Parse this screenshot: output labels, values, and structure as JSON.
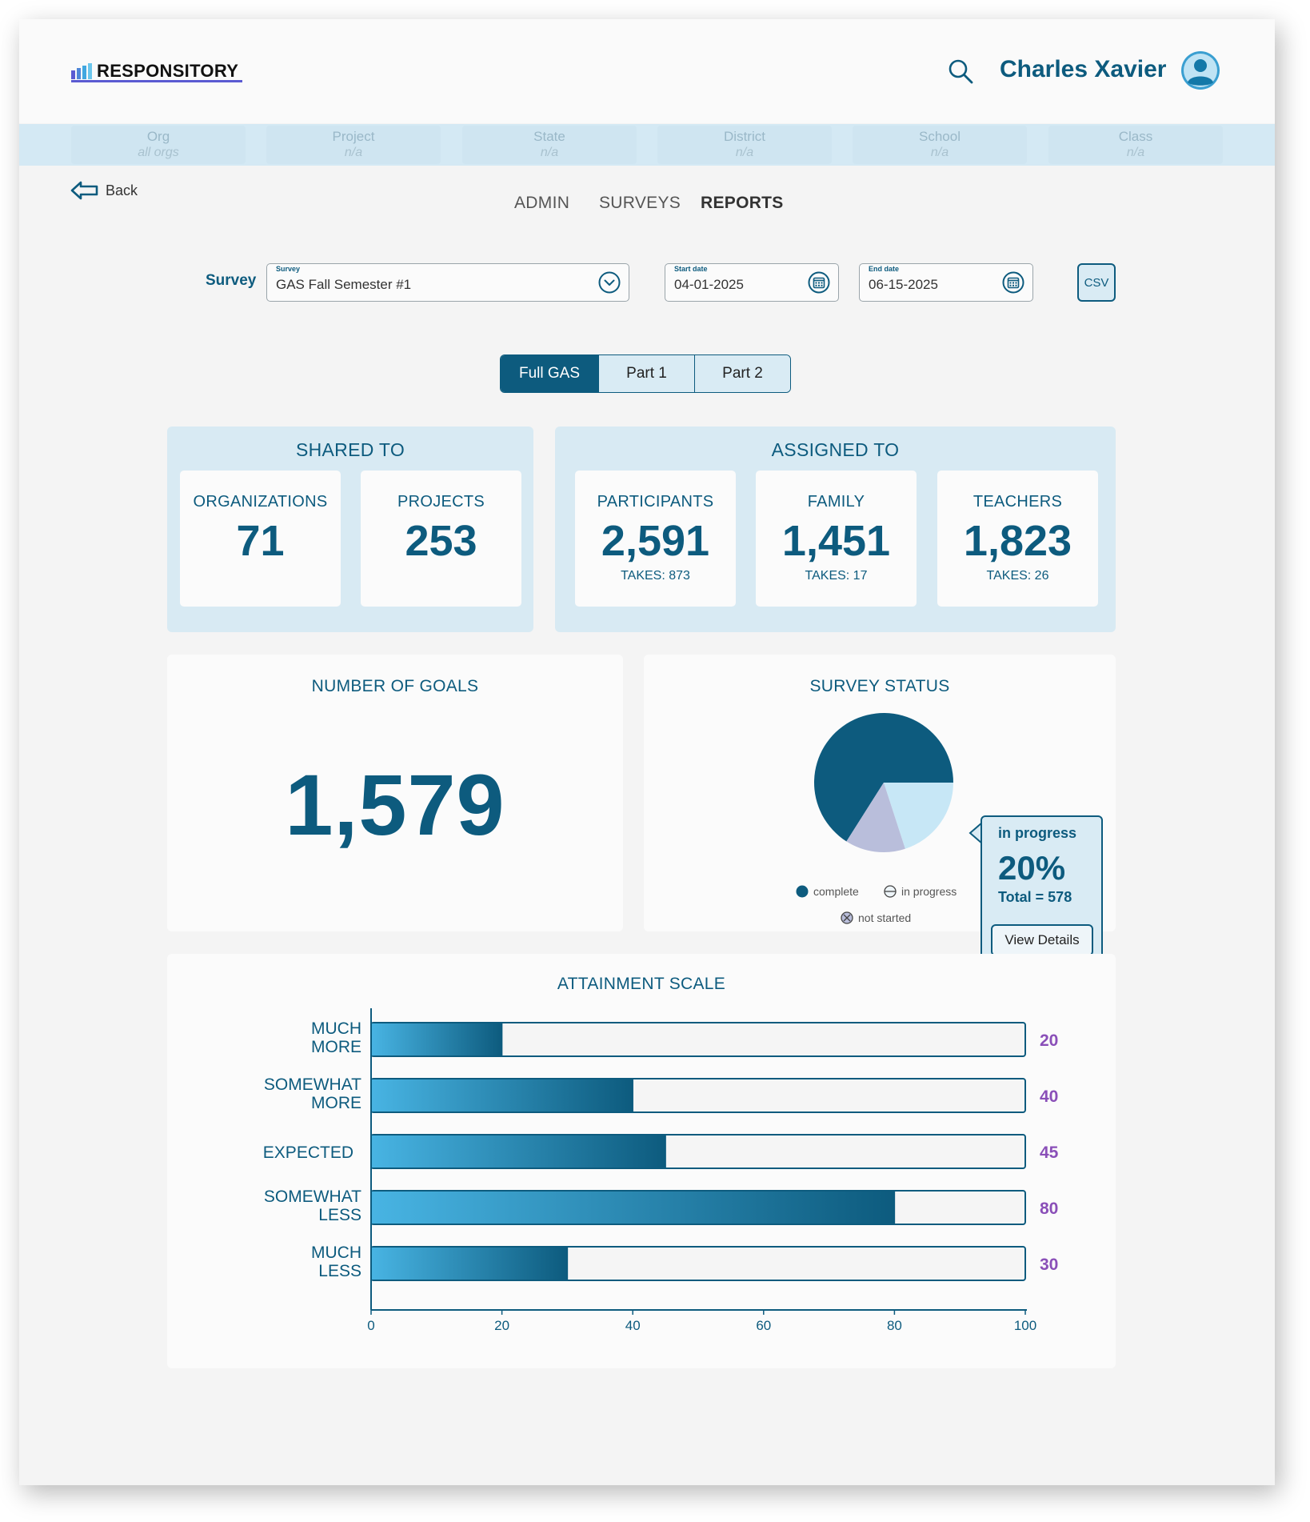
{
  "app": {
    "brand": "RESPONSITORY",
    "user_name": "Charles Xavier"
  },
  "filters": [
    {
      "label": "Org",
      "value": "all orgs"
    },
    {
      "label": "Project",
      "value": "n/a"
    },
    {
      "label": "State",
      "value": "n/a"
    },
    {
      "label": "District",
      "value": "n/a"
    },
    {
      "label": "School",
      "value": "n/a"
    },
    {
      "label": "Class",
      "value": "n/a"
    }
  ],
  "back_label": "Back",
  "nav": {
    "admin": "ADMIN",
    "surveys": "SURVEYS",
    "reports": "REPORTS",
    "active": "REPORTS"
  },
  "controls": {
    "survey_label": "Survey",
    "survey_caption": "Survey",
    "survey_value": "GAS Fall Semester #1",
    "start_caption": "Start date",
    "start_value": "04-01-2025",
    "end_caption": "End date",
    "end_value": "06-15-2025",
    "csv_label": "CSV"
  },
  "segments": {
    "full": "Full GAS",
    "part1": "Part 1",
    "part2": "Part 2",
    "active": "Full GAS"
  },
  "shared_to": {
    "title": "SHARED TO",
    "organizations_label": "ORGANIZATIONS",
    "organizations_value": "71",
    "projects_label": "PROJECTS",
    "projects_value": "253"
  },
  "assigned_to": {
    "title": "ASSIGNED TO",
    "participants_label": "PARTICIPANTS",
    "participants_value": "2,591",
    "participants_takes": "TAKES: 873",
    "family_label": "FAMILY",
    "family_value": "1,451",
    "family_takes": "TAKES: 17",
    "teachers_label": "TEACHERS",
    "teachers_value": "1,823",
    "teachers_takes": "TAKES: 26"
  },
  "goals": {
    "title": "NUMBER OF GOALS",
    "value": "1,579"
  },
  "survey_status": {
    "title": "SURVEY STATUS",
    "legend_complete": "complete",
    "legend_in_progress": "in progress",
    "legend_not_started": "not started",
    "tooltip_label": "in progress",
    "tooltip_percent": "20%",
    "tooltip_total": "Total = 578",
    "tooltip_button": "View Details"
  },
  "colors": {
    "brand": "#0d5b7e",
    "panel": "#d8eaf3",
    "complete": "#0d5b7e",
    "in_progress": "#c7e7f6",
    "not_started": "#b9bedb",
    "bar_value_text": "#8a4fb8",
    "bar_gradient_start": "#48b4e3",
    "bar_gradient_end": "#0d5b7e"
  },
  "chart_data": [
    {
      "type": "pie",
      "title": "SURVEY STATUS",
      "categories": [
        "complete",
        "in progress",
        "not started"
      ],
      "values": [
        66,
        20,
        14
      ],
      "legend": "bottom"
    },
    {
      "type": "bar",
      "orientation": "horizontal",
      "title": "ATTAINMENT SCALE",
      "categories": [
        "MUCH MORE",
        "SOMEWHAT MORE",
        "EXPECTED",
        "SOMEWHAT LESS",
        "MUCH LESS"
      ],
      "values": [
        20,
        40,
        45,
        80,
        30
      ],
      "xlim": [
        0,
        100
      ],
      "xticks": [
        "0",
        "20",
        "40",
        "60",
        "80",
        "100"
      ]
    }
  ]
}
